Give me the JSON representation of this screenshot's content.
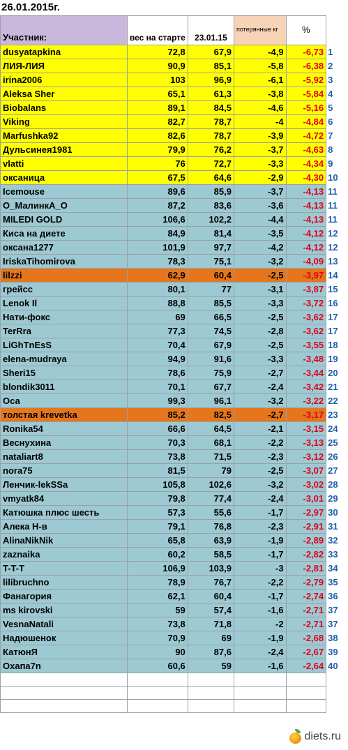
{
  "date": "26.01.2015г.",
  "header": {
    "participant": "Участник:",
    "start_weight": "вес на старте",
    "date_col": "23.01.15",
    "lost": "потерянные кг",
    "percent": "%"
  },
  "rows": [
    {
      "name": "dusyatapkina",
      "start": "72,8",
      "current": "67,9",
      "lost": "-4,9",
      "pct": "-6,73",
      "rank": "1",
      "group": "yellow"
    },
    {
      "name": "ЛИЯ-ЛИЯ",
      "start": "90,9",
      "current": "85,1",
      "lost": "-5,8",
      "pct": "-6,38",
      "rank": "2",
      "group": "yellow"
    },
    {
      "name": "irina2006",
      "start": "103",
      "current": "96,9",
      "lost": "-6,1",
      "pct": "-5,92",
      "rank": "3",
      "group": "yellow"
    },
    {
      "name": "Aleksa Sher",
      "start": "65,1",
      "current": "61,3",
      "lost": "-3,8",
      "pct": "-5,84",
      "rank": "4",
      "group": "yellow"
    },
    {
      "name": "Biobalans",
      "start": "89,1",
      "current": "84,5",
      "lost": "-4,6",
      "pct": "-5,16",
      "rank": "5",
      "group": "yellow"
    },
    {
      "name": "Viking",
      "start": "82,7",
      "current": "78,7",
      "lost": "-4",
      "pct": "-4,84",
      "rank": "6",
      "group": "yellow"
    },
    {
      "name": "Marfushka92",
      "start": "82,6",
      "current": "78,7",
      "lost": "-3,9",
      "pct": "-4,72",
      "rank": "7",
      "group": "yellow"
    },
    {
      "name": "Дульсинея1981",
      "start": "79,9",
      "current": "76,2",
      "lost": "-3,7",
      "pct": "-4,63",
      "rank": "8",
      "group": "yellow"
    },
    {
      "name": "vlatti",
      "start": "76",
      "current": "72,7",
      "lost": "-3,3",
      "pct": "-4,34",
      "rank": "9",
      "group": "yellow"
    },
    {
      "name": "оксаница",
      "start": "67,5",
      "current": "64,6",
      "lost": "-2,9",
      "pct": "-4,30",
      "rank": "10",
      "group": "yellow"
    },
    {
      "name": "Icemouse",
      "start": "89,6",
      "current": "85,9",
      "lost": "-3,7",
      "pct": "-4,13",
      "rank": "11",
      "group": "blue"
    },
    {
      "name": "O_МалинкА_O",
      "start": "87,2",
      "current": "83,6",
      "lost": "-3,6",
      "pct": "-4,13",
      "rank": "11",
      "group": "blue"
    },
    {
      "name": "MILEDI GOLD",
      "start": "106,6",
      "current": "102,2",
      "lost": "-4,4",
      "pct": "-4,13",
      "rank": "11",
      "group": "blue"
    },
    {
      "name": "Киса на диете",
      "start": "84,9",
      "current": "81,4",
      "lost": "-3,5",
      "pct": "-4,12",
      "rank": "12",
      "group": "blue"
    },
    {
      "name": "оксана1277",
      "start": "101,9",
      "current": "97,7",
      "lost": "-4,2",
      "pct": "-4,12",
      "rank": "12",
      "group": "blue"
    },
    {
      "name": "IriskaTihomirova",
      "start": "78,3",
      "current": "75,1",
      "lost": "-3,2",
      "pct": "-4,09",
      "rank": "13",
      "group": "blue"
    },
    {
      "name": "lilzzi",
      "start": "62,9",
      "current": "60,4",
      "lost": "-2,5",
      "pct": "-3,97",
      "rank": "14",
      "group": "orange"
    },
    {
      "name": "грейсс",
      "start": "80,1",
      "current": "77",
      "lost": "-3,1",
      "pct": "-3,87",
      "rank": "15",
      "group": "blue"
    },
    {
      "name": "Lenok Il",
      "start": "88,8",
      "current": "85,5",
      "lost": "-3,3",
      "pct": "-3,72",
      "rank": "16",
      "group": "blue"
    },
    {
      "name": "Нати-фокс",
      "start": "69",
      "current": "66,5",
      "lost": "-2,5",
      "pct": "-3,62",
      "rank": "17",
      "group": "blue"
    },
    {
      "name": "TerRra",
      "start": "77,3",
      "current": "74,5",
      "lost": "-2,8",
      "pct": "-3,62",
      "rank": "17",
      "group": "blue"
    },
    {
      "name": "LiGhTnEsS",
      "start": "70,4",
      "current": "67,9",
      "lost": "-2,5",
      "pct": "-3,55",
      "rank": "18",
      "group": "blue"
    },
    {
      "name": "elena-mudraya",
      "start": "94,9",
      "current": "91,6",
      "lost": "-3,3",
      "pct": "-3,48",
      "rank": "19",
      "group": "blue"
    },
    {
      "name": "Sheri15",
      "start": "78,6",
      "current": "75,9",
      "lost": "-2,7",
      "pct": "-3,44",
      "rank": "20",
      "group": "blue"
    },
    {
      "name": "blondik3011",
      "start": "70,1",
      "current": "67,7",
      "lost": "-2,4",
      "pct": "-3,42",
      "rank": "21",
      "group": "blue"
    },
    {
      "name": "Оса",
      "start": "99,3",
      "current": "96,1",
      "lost": "-3,2",
      "pct": "-3,22",
      "rank": "22",
      "group": "blue"
    },
    {
      "name": "толстая krevetka",
      "start": "85,2",
      "current": "82,5",
      "lost": "-2,7",
      "pct": "-3,17",
      "rank": "23",
      "group": "orange"
    },
    {
      "name": "Ronika54",
      "start": "66,6",
      "current": "64,5",
      "lost": "-2,1",
      "pct": "-3,15",
      "rank": "24",
      "group": "blue"
    },
    {
      "name": "Веснухина",
      "start": "70,3",
      "current": "68,1",
      "lost": "-2,2",
      "pct": "-3,13",
      "rank": "25",
      "group": "blue"
    },
    {
      "name": "nataliart8",
      "start": "73,8",
      "current": "71,5",
      "lost": "-2,3",
      "pct": "-3,12",
      "rank": "26",
      "group": "blue"
    },
    {
      "name": "nora75",
      "start": "81,5",
      "current": "79",
      "lost": "-2,5",
      "pct": "-3,07",
      "rank": "27",
      "group": "blue"
    },
    {
      "name": "Ленчик-lekSSa",
      "start": "105,8",
      "current": "102,6",
      "lost": "-3,2",
      "pct": "-3,02",
      "rank": "28",
      "group": "blue"
    },
    {
      "name": "vmyatk84",
      "start": "79,8",
      "current": "77,4",
      "lost": "-2,4",
      "pct": "-3,01",
      "rank": "29",
      "group": "blue"
    },
    {
      "name": "Катюшка плюс шесть",
      "start": "57,3",
      "current": "55,6",
      "lost": "-1,7",
      "pct": "-2,97",
      "rank": "30",
      "group": "blue"
    },
    {
      "name": "Алека Н-в",
      "start": "79,1",
      "current": "76,8",
      "lost": "-2,3",
      "pct": "-2,91",
      "rank": "31",
      "group": "blue"
    },
    {
      "name": "AlinaNikNik",
      "start": "65,8",
      "current": "63,9",
      "lost": "-1,9",
      "pct": "-2,89",
      "rank": "32",
      "group": "blue"
    },
    {
      "name": "zaznaika",
      "start": "60,2",
      "current": "58,5",
      "lost": "-1,7",
      "pct": "-2,82",
      "rank": "33",
      "group": "blue"
    },
    {
      "name": "T-T-T",
      "start": "106,9",
      "current": "103,9",
      "lost": "-3",
      "pct": "-2,81",
      "rank": "34",
      "group": "blue"
    },
    {
      "name": "lilibruchno",
      "start": "78,9",
      "current": "76,7",
      "lost": "-2,2",
      "pct": "-2,79",
      "rank": "35",
      "group": "blue"
    },
    {
      "name": "Фанагория",
      "start": "62,1",
      "current": "60,4",
      "lost": "-1,7",
      "pct": "-2,74",
      "rank": "36",
      "group": "blue"
    },
    {
      "name": "ms kirovski",
      "start": "59",
      "current": "57,4",
      "lost": "-1,6",
      "pct": "-2,71",
      "rank": "37",
      "group": "blue"
    },
    {
      "name": "VesnaNatali",
      "start": "73,8",
      "current": "71,8",
      "lost": "-2",
      "pct": "-2,71",
      "rank": "37",
      "group": "blue"
    },
    {
      "name": "Надюшенок",
      "start": "70,9",
      "current": "69",
      "lost": "-1,9",
      "pct": "-2,68",
      "rank": "38",
      "group": "blue"
    },
    {
      "name": "КатюнЯ",
      "start": "90",
      "current": "87,6",
      "lost": "-2,4",
      "pct": "-2,67",
      "rank": "39",
      "group": "blue"
    },
    {
      "name": "Охапа7n",
      "start": "60,6",
      "current": "59",
      "lost": "-1,6",
      "pct": "-2,64",
      "rank": "40",
      "group": "blue"
    }
  ],
  "empty_rows": 3,
  "watermark": "diets.ru",
  "watermark_icon": "apple-logo-icon"
}
